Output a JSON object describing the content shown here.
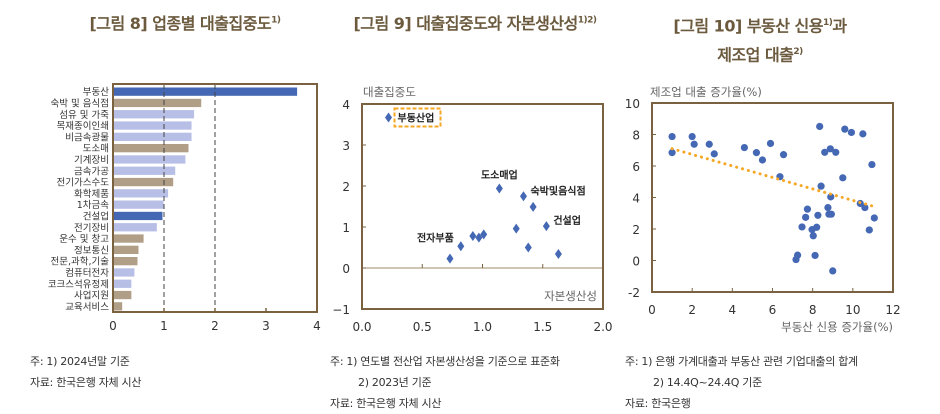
{
  "colors": {
    "frame": "#7a6240",
    "title": "#6b5a3e",
    "dark_blue": "#4468b4",
    "tan": "#b09e87",
    "light_blue": "#b8bfe6",
    "point": "#4468b4",
    "trend": "#f5a623"
  },
  "figures": [
    {
      "title": "[그림 8] 업종별 대출집중도",
      "sup": "1)",
      "notes": [
        "주: 1) 2024년말 기준",
        "자료: 한국은행 자체 시산"
      ]
    },
    {
      "title": "[그림 9] 대출집중도와 자본생산성",
      "sup": "1)2)",
      "notes": [
        "주: 1) 연도별 전산업 자본생산성을 기준으로 표준화",
        "2) 2023년 기준",
        "자료: 한국은행 자체 시산"
      ]
    },
    {
      "title": "[그림 10] 부동산 신용",
      "sup": "1)",
      "title_suffix": "과",
      "title2": "제조업 대출",
      "sup2": "2)",
      "notes": [
        "주: 1) 은행 가계대출과 부동산 관련 기업대출의 합계",
        "2) 14.4Q~24.4Q 기준",
        "자료: 한국은행"
      ]
    }
  ],
  "chart_data": [
    {
      "type": "bar",
      "orientation": "horizontal",
      "xlim": [
        0,
        4
      ],
      "xticks": [
        "0",
        "1",
        "2",
        "3",
        "4"
      ],
      "reference_lines": [
        1,
        2
      ],
      "categories": [
        "부동산",
        "숙박 및 음식점",
        "섬유 및 가죽",
        "목재종이인쇄",
        "비금속광물",
        "도소매",
        "기계장비",
        "금속가공",
        "전기가스수도",
        "화학제품",
        "1차금속",
        "건설업",
        "전기장비",
        "운수 및 창고",
        "정보통신",
        "전문,과학,기술",
        "컴퓨터전자",
        "코크스석유정제",
        "사업지원",
        "교육서비스"
      ],
      "values": [
        3.61,
        1.73,
        1.59,
        1.54,
        1.54,
        1.48,
        1.42,
        1.22,
        1.18,
        1.08,
        0.99,
        0.97,
        0.86,
        0.6,
        0.5,
        0.48,
        0.42,
        0.36,
        0.36,
        0.18
      ],
      "bar_colors": [
        "dark_blue",
        "tan",
        "light_blue",
        "light_blue",
        "light_blue",
        "tan",
        "light_blue",
        "light_blue",
        "tan",
        "light_blue",
        "light_blue",
        "dark_blue",
        "light_blue",
        "tan",
        "tan",
        "tan",
        "light_blue",
        "light_blue",
        "tan",
        "tan"
      ]
    },
    {
      "type": "scatter",
      "marker": "diamond",
      "xlabel": "자본생산성",
      "ylabel": "대출집중도",
      "xlim": [
        0,
        2
      ],
      "ylim": [
        -1,
        4
      ],
      "xticks": [
        "0.0",
        "0.5",
        "1.0",
        "1.5",
        "2.0"
      ],
      "yticks": [
        "-1",
        "0",
        "1",
        "2",
        "3",
        "4"
      ],
      "points": [
        {
          "x": 0.22,
          "y": 3.67,
          "label": "부동산업",
          "highlight": true
        },
        {
          "x": 1.14,
          "y": 1.94,
          "label": "도소매업"
        },
        {
          "x": 1.34,
          "y": 1.75,
          "label": "숙박및음식점"
        },
        {
          "x": 1.42,
          "y": 1.49
        },
        {
          "x": 1.53,
          "y": 1.02,
          "label": "건설업"
        },
        {
          "x": 1.28,
          "y": 0.96
        },
        {
          "x": 1.38,
          "y": 0.5
        },
        {
          "x": 1.63,
          "y": 0.34
        },
        {
          "x": 0.82,
          "y": 0.53,
          "label": "전자부품"
        },
        {
          "x": 0.73,
          "y": 0.23
        },
        {
          "x": 0.92,
          "y": 0.78
        },
        {
          "x": 0.97,
          "y": 0.74
        },
        {
          "x": 1.01,
          "y": 0.82
        }
      ]
    },
    {
      "type": "scatter",
      "marker": "circle",
      "xlabel": "부동산 신용 증가율(%)",
      "ylabel": "제조업 대출 증가율(%)",
      "xlim": [
        0,
        12
      ],
      "ylim": [
        -2,
        10
      ],
      "xticks": [
        "0",
        "2",
        "4",
        "6",
        "8",
        "10",
        "12"
      ],
      "yticks": [
        "-2",
        "0",
        "2",
        "4",
        "6",
        "8",
        "10"
      ],
      "trendline": [
        [
          1.0,
          7.1
        ],
        [
          11.0,
          3.45
        ]
      ],
      "points": [
        [
          1.0,
          7.87
        ],
        [
          1.0,
          6.85
        ],
        [
          2.0,
          7.87
        ],
        [
          2.1,
          7.38
        ],
        [
          2.85,
          7.38
        ],
        [
          3.1,
          6.77
        ],
        [
          4.6,
          7.17
        ],
        [
          5.2,
          6.85
        ],
        [
          5.5,
          6.38
        ],
        [
          5.9,
          7.43
        ],
        [
          6.37,
          5.32
        ],
        [
          6.55,
          6.72
        ],
        [
          8.35,
          8.51
        ],
        [
          9.6,
          8.34
        ],
        [
          9.93,
          8.13
        ],
        [
          10.5,
          8.04
        ],
        [
          10.95,
          6.09
        ],
        [
          8.6,
          6.87
        ],
        [
          8.88,
          7.09
        ],
        [
          9.15,
          6.87
        ],
        [
          9.5,
          5.25
        ],
        [
          8.42,
          4.72
        ],
        [
          8.9,
          4.04
        ],
        [
          8.76,
          3.36
        ],
        [
          8.81,
          2.94
        ],
        [
          8.93,
          2.94
        ],
        [
          8.26,
          2.87
        ],
        [
          7.74,
          3.26
        ],
        [
          7.65,
          2.74
        ],
        [
          7.47,
          2.13
        ],
        [
          7.97,
          1.96
        ],
        [
          8.03,
          1.57
        ],
        [
          8.2,
          2.11
        ],
        [
          7.25,
          0.34
        ],
        [
          7.17,
          0.06
        ],
        [
          8.12,
          0.32
        ],
        [
          9.0,
          -0.66
        ],
        [
          10.37,
          3.62
        ],
        [
          10.6,
          3.36
        ],
        [
          10.82,
          1.94
        ],
        [
          11.07,
          2.7
        ]
      ]
    }
  ]
}
